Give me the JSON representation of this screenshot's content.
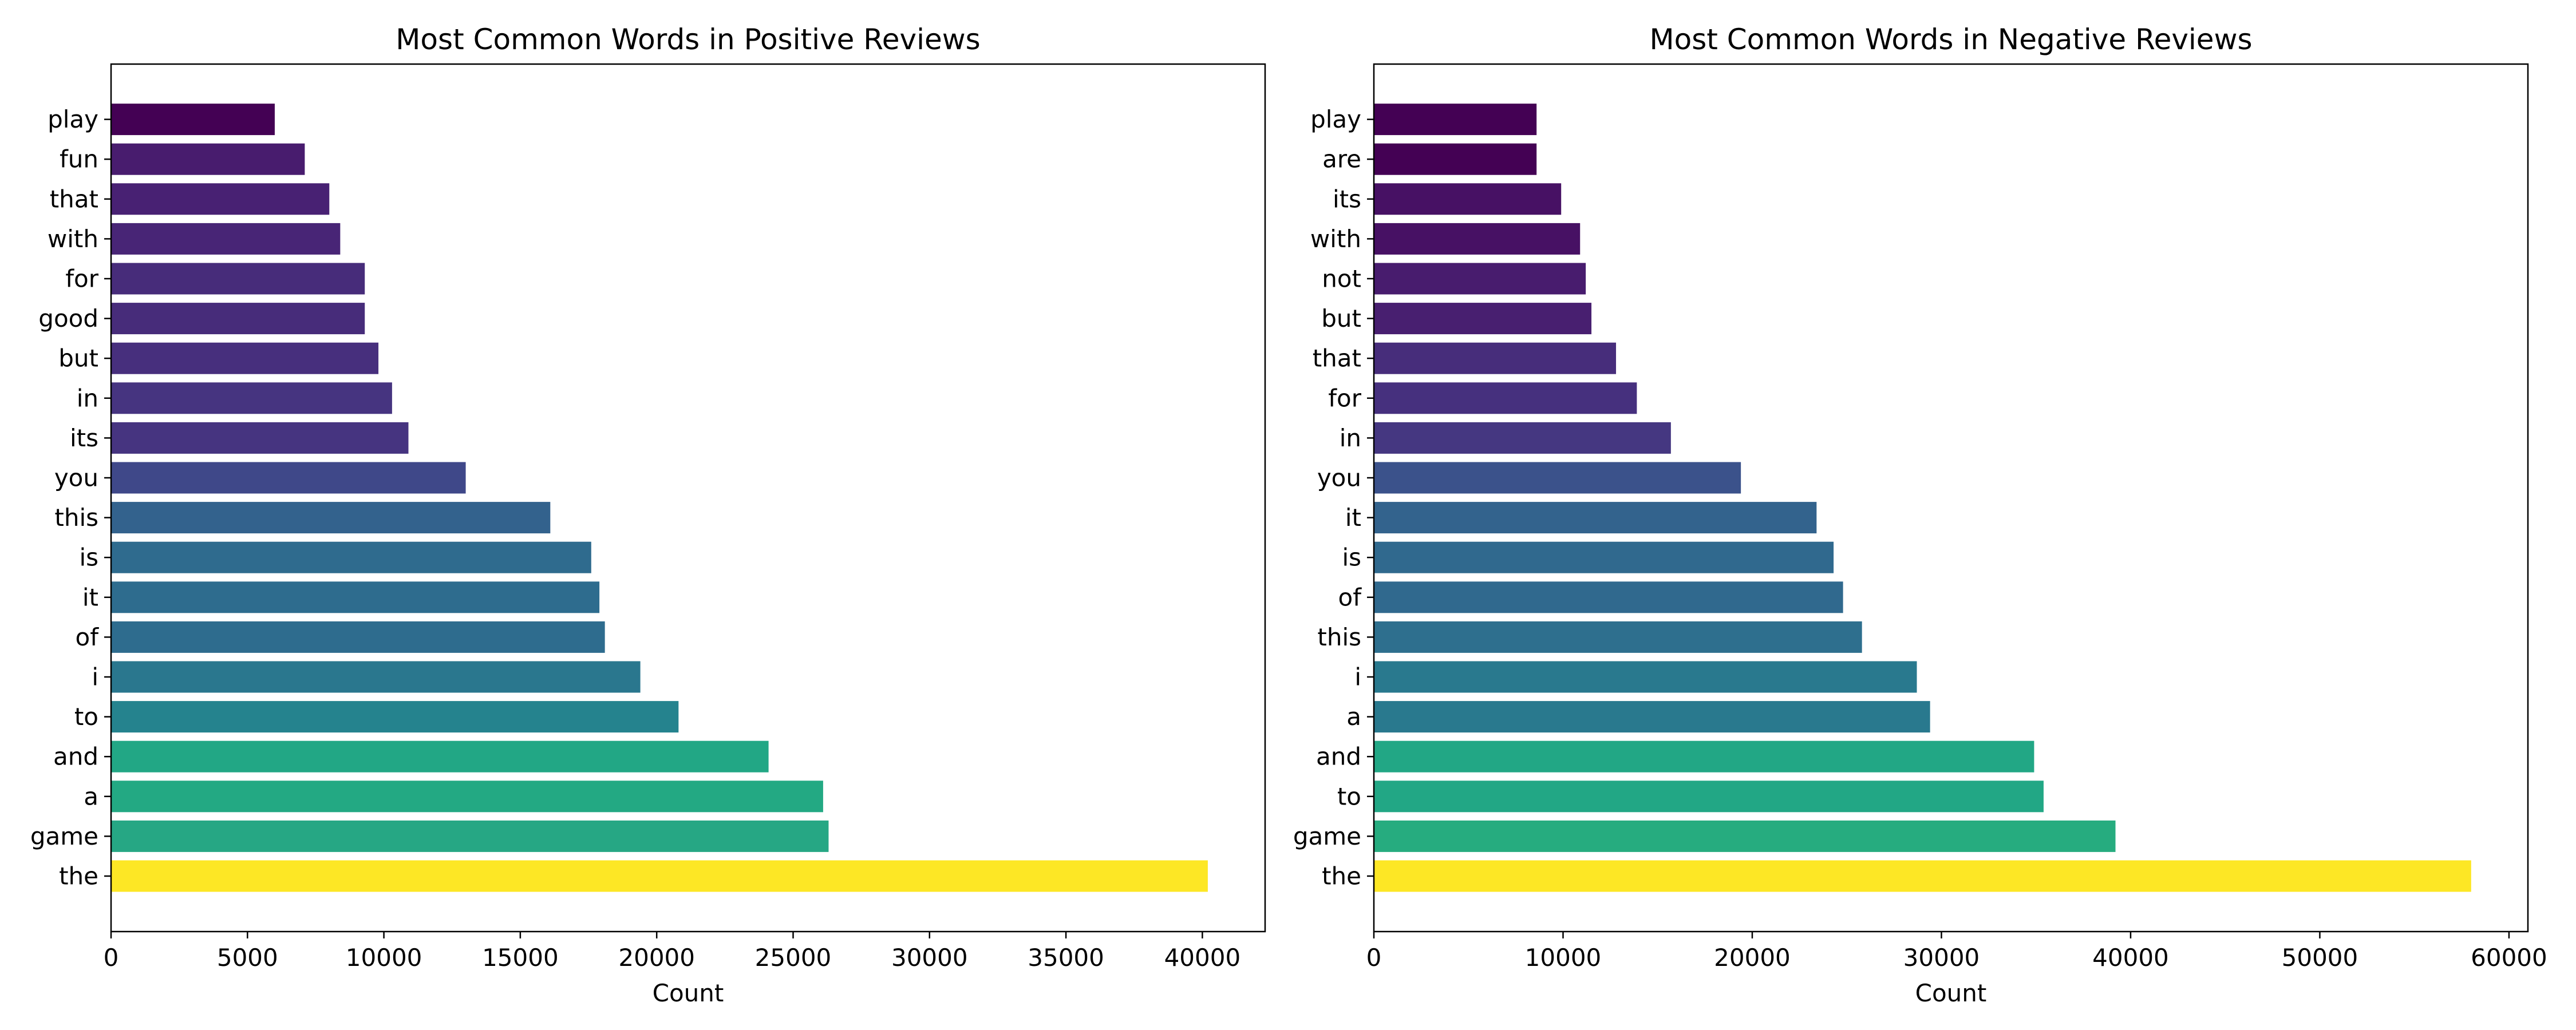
{
  "chart_data": [
    {
      "type": "bar",
      "orientation": "horizontal",
      "title": "Most Common Words in Positive Reviews",
      "xlabel": "Count",
      "ylabel": "",
      "xlim": [
        0,
        42300
      ],
      "xticks": [
        0,
        5000,
        10000,
        15000,
        20000,
        25000,
        30000,
        35000,
        40000
      ],
      "categories": [
        "the",
        "game",
        "a",
        "and",
        "to",
        "i",
        "of",
        "it",
        "is",
        "this",
        "you",
        "its",
        "in",
        "but",
        "good",
        "for",
        "with",
        "that",
        "fun",
        "play"
      ],
      "values": [
        40200,
        26300,
        26100,
        24100,
        20800,
        19400,
        18100,
        17900,
        17600,
        16100,
        13000,
        10900,
        10300,
        9800,
        9300,
        9300,
        8400,
        8000,
        7100,
        6000
      ],
      "colors": [
        "#fde725",
        "#26a784",
        "#23a983",
        "#22a785",
        "#25838e",
        "#2a778e",
        "#2e6c8e",
        "#2e6c8e",
        "#2f6b8e",
        "#33628d",
        "#3f4889",
        "#463480",
        "#463480",
        "#472f7d",
        "#472c7a",
        "#472c7a",
        "#482576",
        "#482173",
        "#481c6e",
        "#440154"
      ],
      "grid": false,
      "legend": "none"
    },
    {
      "type": "bar",
      "orientation": "horizontal",
      "title": "Most Common Words in Negative Reviews",
      "xlabel": "Count",
      "ylabel": "",
      "xlim": [
        0,
        61000
      ],
      "xticks": [
        0,
        10000,
        20000,
        30000,
        40000,
        50000,
        60000
      ],
      "categories": [
        "the",
        "game",
        "to",
        "and",
        "a",
        "i",
        "this",
        "of",
        "is",
        "it",
        "you",
        "in",
        "for",
        "that",
        "but",
        "not",
        "with",
        "its",
        "are",
        "play"
      ],
      "values": [
        58000,
        39200,
        35400,
        34900,
        29400,
        28700,
        25800,
        24800,
        24300,
        23400,
        19400,
        15700,
        13900,
        12800,
        11500,
        11200,
        10900,
        9900,
        8600,
        8600
      ],
      "colors": [
        "#fde725",
        "#26ac7f",
        "#22a785",
        "#22a785",
        "#29798e",
        "#29798e",
        "#2e6f8e",
        "#30698e",
        "#30698e",
        "#33638d",
        "#3b528b",
        "#453781",
        "#46307e",
        "#472d7b",
        "#481f70",
        "#481c6e",
        "#471164",
        "#471164",
        "#440154",
        "#440154"
      ],
      "grid": false,
      "legend": "none"
    }
  ]
}
